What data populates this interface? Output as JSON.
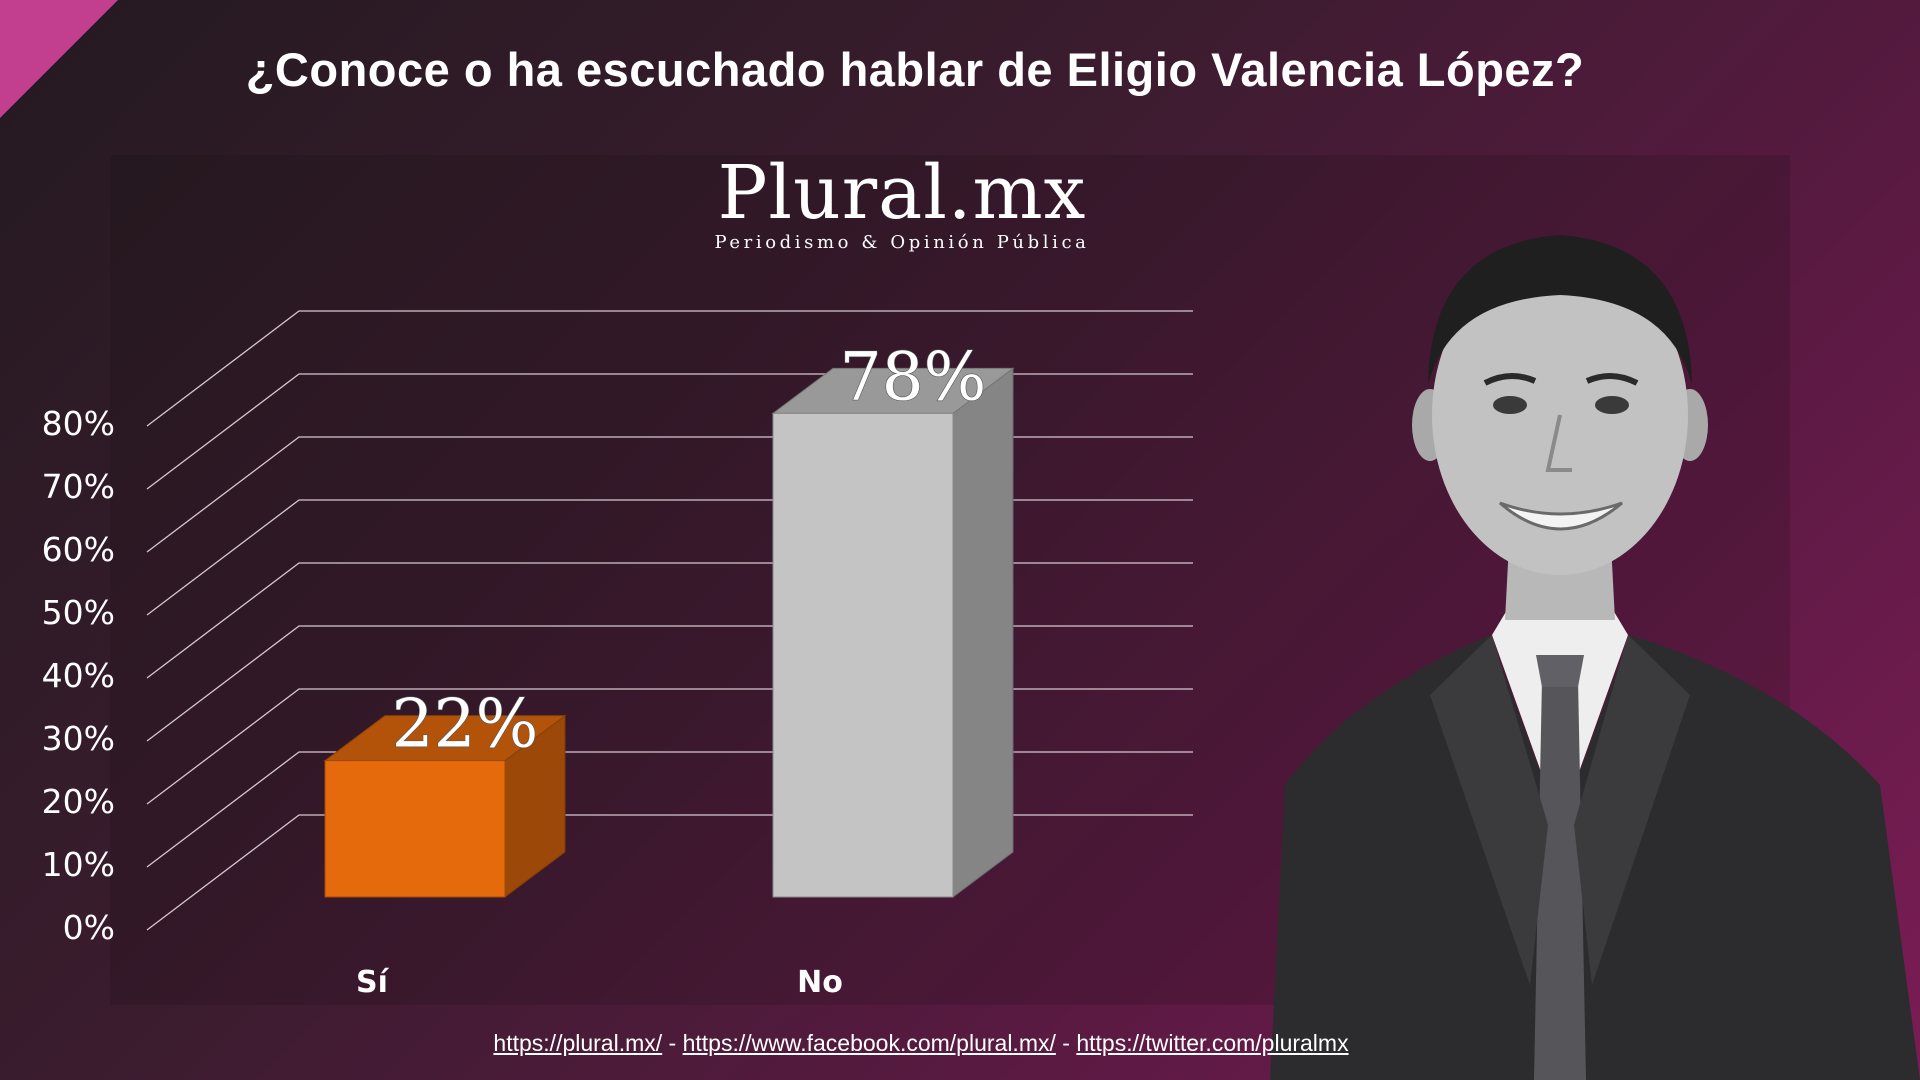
{
  "title": "¿Conoce o ha escuchado hablar de Eligio Valencia López?",
  "logo": {
    "name": "Plural.mx",
    "tagline": "Periodismo & Opinión Pública"
  },
  "chart_data": {
    "type": "bar",
    "categories": [
      "Sí",
      "No"
    ],
    "values": [
      22,
      78
    ],
    "value_labels": [
      "22%",
      "78%"
    ],
    "colors": [
      "#e46a0c",
      "#c4c4c4"
    ],
    "ylim": [
      0,
      80
    ],
    "yticks": [
      "0%",
      "10%",
      "20%",
      "30%",
      "40%",
      "50%",
      "60%",
      "70%",
      "80%"
    ],
    "grid": true,
    "style": "3d"
  },
  "footer": {
    "links": [
      "https://plural.mx/",
      "https://www.facebook.com/plural.mx/",
      "https://twitter.com/pluralmx"
    ],
    "separator": " - "
  }
}
